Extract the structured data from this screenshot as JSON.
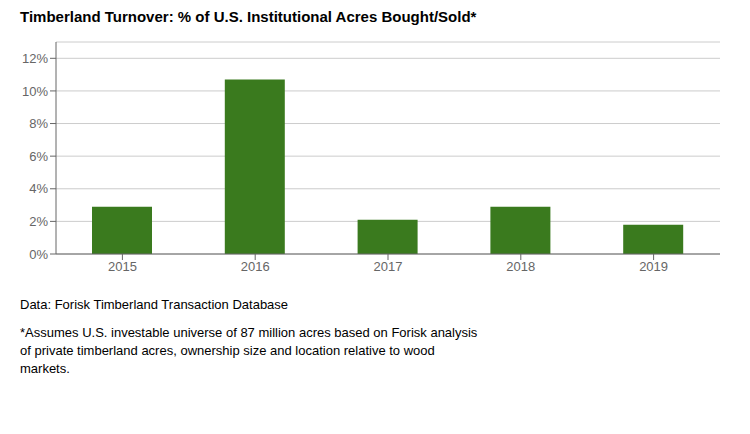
{
  "chart_data": {
    "type": "bar",
    "title": "Timberland Turnover: % of U.S. Institutional Acres Bought/Sold*",
    "categories": [
      "2015",
      "2016",
      "2017",
      "2018",
      "2019"
    ],
    "values": [
      0.029,
      0.107,
      0.021,
      0.029,
      0.018
    ],
    "color": "#3a7a1e",
    "ylim": [
      0,
      0.13
    ],
    "yticks": [
      {
        "value": 0.0,
        "label": "0%"
      },
      {
        "value": 0.02,
        "label": "2%"
      },
      {
        "value": 0.04,
        "label": "4%"
      },
      {
        "value": 0.06,
        "label": "6%"
      },
      {
        "value": 0.08,
        "label": "8%"
      },
      {
        "value": 0.1,
        "label": "10%"
      },
      {
        "value": 0.12,
        "label": "12%"
      }
    ],
    "grid": true,
    "annotations": [
      "Data: Forisk Timberland Transaction Database",
      "*Assumes U.S. investable universe of 87 million acres based on Forisk analysis\nof private timberland acres, ownership size and location relative to wood\nmarkets."
    ]
  }
}
